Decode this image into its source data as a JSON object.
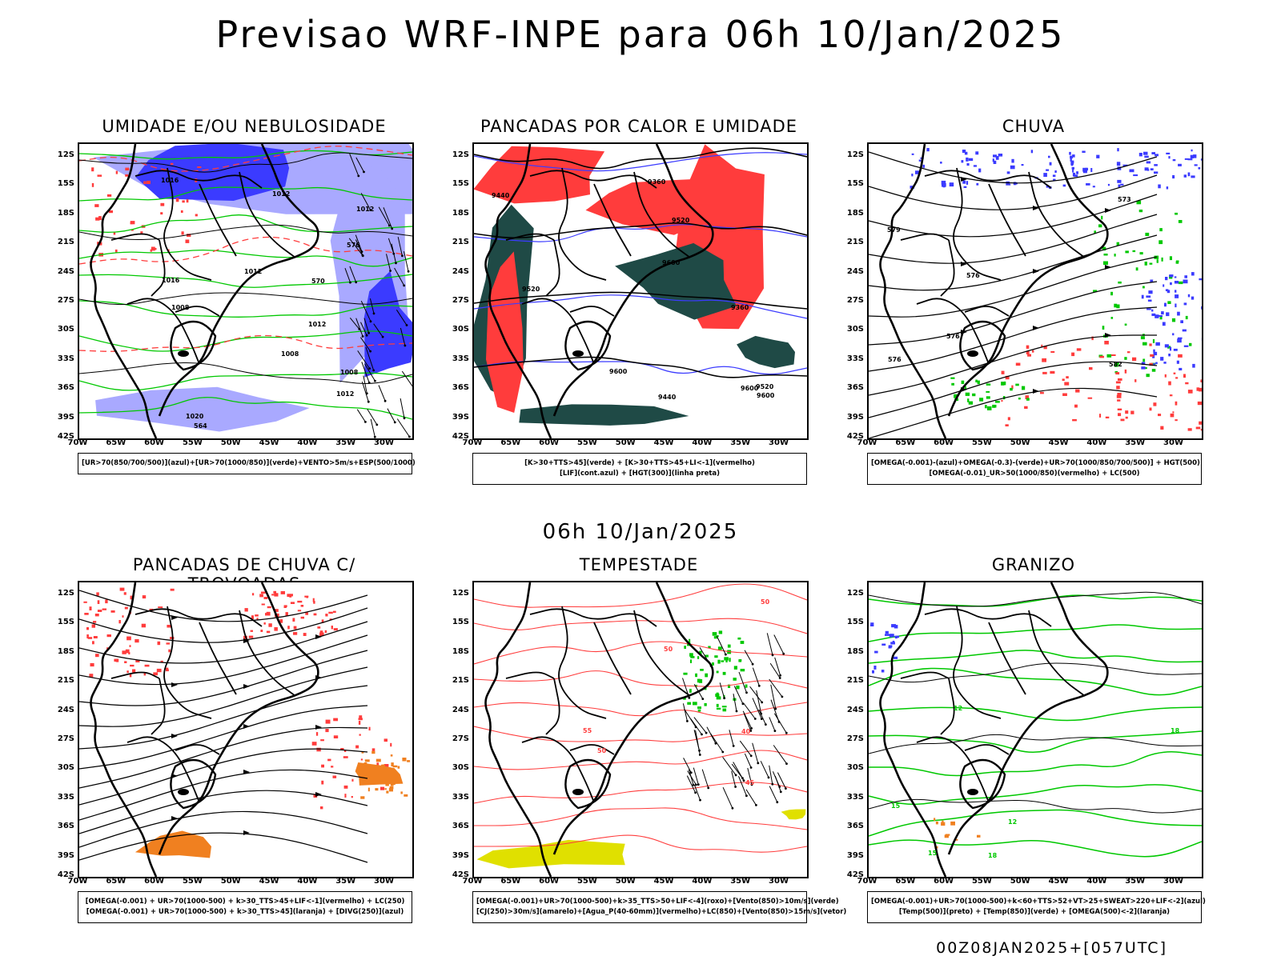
{
  "header": {
    "title": "Previsao WRF-INPE  para 06h 10/Jan/2025",
    "subtitle": "06h 10/Jan/2025",
    "run_stamp": "00Z08JAN2025+[057UTC]"
  },
  "axes": {
    "lat_labels": [
      "12S",
      "15S",
      "18S",
      "21S",
      "24S",
      "27S",
      "30S",
      "33S",
      "36S",
      "39S",
      "42S"
    ],
    "lon_labels": [
      "70W",
      "65W",
      "60W",
      "55W",
      "50W",
      "45W",
      "40W",
      "35W",
      "30W"
    ]
  },
  "colors": {
    "blue": "#3b3bff",
    "lightblue": "#a9a9ff",
    "green": "#00c800",
    "red": "#ff3c3c",
    "darkteal": "#1f4a46",
    "orange": "#f08020",
    "yellow": "#e0e000"
  },
  "panels": [
    {
      "id": "umidade",
      "title": "UMIDADE E/OU NEBULOSIDADE",
      "legend": [
        "[UR>70(850/700/500)](azul)+[UR>70(1000/850)](verde)+VENTO>5m/s+ESP(500/1000)"
      ],
      "contour_labels": [
        "1008",
        "1008",
        "1012",
        "1012",
        "1012",
        "1016",
        "1008",
        "1012",
        "1012",
        "1016",
        "1020",
        "576",
        "570",
        "564"
      ]
    },
    {
      "id": "pancadas-calor",
      "title": "PANCADAS POR CALOR E UMIDADE",
      "legend": [
        "[K>30+TTS>45](verde)  +  [K>30+TTS>45+LI<-1](vermelho)",
        "[LIF](cont.azul)  +  [HGT(300)](linha preta)"
      ],
      "contour_labels": [
        "9600",
        "9600",
        "9600",
        "9520",
        "9520",
        "9520",
        "9440",
        "9440",
        "9360",
        "9360",
        "9600"
      ]
    },
    {
      "id": "chuva",
      "title": "CHUVA",
      "legend": [
        "[OMEGA(-0.001)-(azul)+OMEGA(-0.3)-(verde)+UR>70(1000/850/700/500)]  +  HGT(500)",
        "[OMEGA(-0.01)_UR>50(1000/850)(vermelho)  +  LC(500)"
      ],
      "contour_labels": [
        "582",
        "576",
        "576",
        "573",
        "579",
        "576"
      ]
    },
    {
      "id": "trovoadas",
      "title": "PANCADAS DE CHUVA C/ TROVOADAS",
      "legend": [
        "[OMEGA(-0.001)  +  UR>70(1000-500)  +  k>30_TTS>45+LIF<-1](vermelho)  +  LC(250)",
        "[OMEGA(-0.001)  +  UR>70(1000-500)  +  k>30_TTS>45](laranja)  +  [DIVG(250)](azul)"
      ],
      "contour_labels": []
    },
    {
      "id": "tempestade",
      "title": "TEMPESTADE",
      "legend": [
        "[OMEGA(-0.001)+UR>70(1000-500)+k>35_TTS>50+LIF<-4](roxo)+[Vento(850)>10m/s](verde)",
        "[CJ(250)>30m/s](amarelo)+[Agua_P(40-60mm)](vermelho)+LC(850)+[Vento(850)>15m/s](vetor)"
      ],
      "contour_labels": [
        "50",
        "50",
        "45",
        "40",
        "50",
        "55"
      ]
    },
    {
      "id": "granizo",
      "title": "GRANIZO",
      "legend": [
        "[OMEGA(-0.001)+UR>70(1000-500)+k<60+TTS>52+VT>25+SWEAT>220+LIF<-2](azul)",
        "[Temp(500)](preto)  +  [Temp(850)](verde)  +  [OMEGA(500)<-2](laranja)"
      ],
      "contour_labels": [
        "15",
        "18",
        "12",
        "12",
        "15",
        "18"
      ]
    }
  ]
}
